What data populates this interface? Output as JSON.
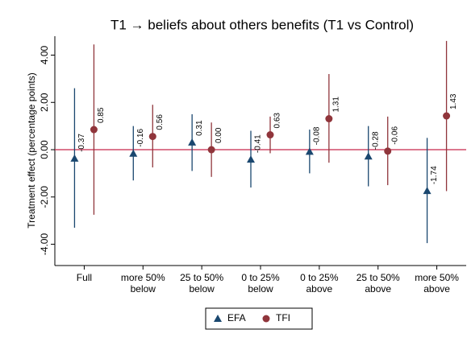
{
  "chart_data": {
    "type": "errorbar",
    "title": "T1 → beliefs about others benefits (T1 vs Control)",
    "y_label": "Treatment effect (percentage points)",
    "categories": [
      [
        "Full"
      ],
      [
        "more 50%",
        "below"
      ],
      [
        "25 to 50%",
        "below"
      ],
      [
        "0 to 25%",
        "below"
      ],
      [
        "0 to 25%",
        "above"
      ],
      [
        "25 to 50%",
        "above"
      ],
      [
        "more 50%",
        "above"
      ]
    ],
    "series": [
      {
        "name": "EFA",
        "color": "#1a476f",
        "marker": "triangle",
        "values": [
          -0.37,
          -0.16,
          0.31,
          -0.41,
          -0.08,
          -0.28,
          -1.74
        ],
        "value_labels": [
          "-0.37",
          "-0.16",
          "0.31",
          "-0.41",
          "-0.08",
          "-0.28",
          "-1.74"
        ],
        "lower": [
          -3.3,
          -1.3,
          -0.9,
          -1.6,
          -1.0,
          -1.55,
          -3.95
        ],
        "upper": [
          2.6,
          1.0,
          1.5,
          0.8,
          0.85,
          1.0,
          0.5
        ]
      },
      {
        "name": "TFI",
        "color": "#90353b",
        "marker": "circle",
        "values": [
          0.85,
          0.56,
          0,
          0.63,
          1.31,
          -0.06,
          1.43
        ],
        "value_labels": [
          "0.85",
          "0.56",
          "0.00",
          "0.63",
          "1.31",
          "-0.06",
          "1.43"
        ],
        "lower": [
          -2.75,
          -0.75,
          -1.15,
          -0.15,
          -0.55,
          -1.5,
          -1.75
        ],
        "upper": [
          4.45,
          1.9,
          1.15,
          1.4,
          3.2,
          1.4,
          4.6
        ]
      }
    ],
    "ylim": [
      -4.9,
      4.8
    ],
    "yticks": [
      {
        "value": -4,
        "label": "-4.00"
      },
      {
        "value": -2,
        "label": "-2.00"
      },
      {
        "value": 0,
        "label": "0.00"
      },
      {
        "value": 2,
        "label": "2.00"
      },
      {
        "value": 4,
        "label": "4.00"
      }
    ],
    "reference_line": 0,
    "reference_color": "#c8264a",
    "legend": "bottom"
  }
}
